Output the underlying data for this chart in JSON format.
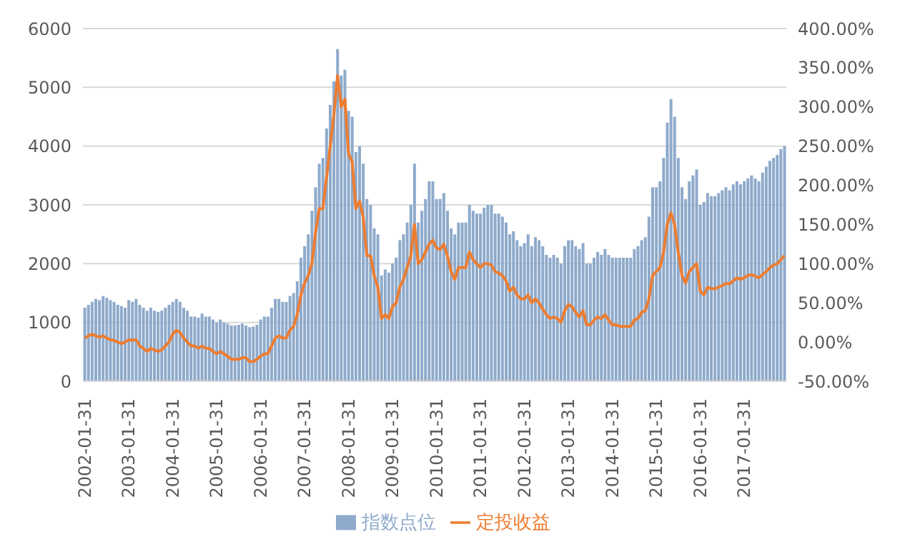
{
  "chart_data": {
    "type": "bar",
    "categories": [
      "2002-01-31",
      null,
      null,
      null,
      null,
      null,
      null,
      null,
      null,
      null,
      null,
      null,
      "2003-01-31",
      null,
      null,
      null,
      null,
      null,
      null,
      null,
      null,
      null,
      null,
      null,
      "2004-01-31",
      null,
      null,
      null,
      null,
      null,
      null,
      null,
      null,
      null,
      null,
      null,
      "2005-01-31",
      null,
      null,
      null,
      null,
      null,
      null,
      null,
      null,
      null,
      null,
      null,
      "2006-01-31",
      null,
      null,
      null,
      null,
      null,
      null,
      null,
      null,
      null,
      null,
      null,
      "2007-01-31",
      null,
      null,
      null,
      null,
      null,
      null,
      null,
      null,
      null,
      null,
      null,
      "2008-01-31",
      null,
      null,
      null,
      null,
      null,
      null,
      null,
      null,
      null,
      null,
      null,
      "2009-01-31",
      null,
      null,
      null,
      null,
      null,
      null,
      null,
      null,
      null,
      null,
      null,
      "2010-01-31",
      null,
      null,
      null,
      null,
      null,
      null,
      null,
      null,
      null,
      null,
      null,
      "2011-01-31",
      null,
      null,
      null,
      null,
      null,
      null,
      null,
      null,
      null,
      null,
      null,
      "2012-01-31",
      null,
      null,
      null,
      null,
      null,
      null,
      null,
      null,
      null,
      null,
      null,
      "2013-01-31",
      null,
      null,
      null,
      null,
      null,
      null,
      null,
      null,
      null,
      null,
      null,
      "2014-01-31",
      null,
      null,
      null,
      null,
      null,
      null,
      null,
      null,
      null,
      null,
      null,
      "2015-01-31",
      null,
      null,
      null,
      null,
      null,
      null,
      null,
      null,
      null,
      null,
      null,
      "2016-01-31",
      null,
      null,
      null,
      null,
      null,
      null,
      null,
      null,
      null,
      null,
      null,
      "2017-01-31",
      null,
      null,
      null,
      null,
      null,
      null,
      null,
      null,
      null,
      null,
      null
    ],
    "series": [
      {
        "name": "指数点位",
        "color": "#8eaacb",
        "values": [
          1250,
          1300,
          1350,
          1400,
          1380,
          1450,
          1420,
          1380,
          1350,
          1300,
          1280,
          1250,
          1380,
          1350,
          1400,
          1300,
          1250,
          1200,
          1250,
          1200,
          1180,
          1200,
          1250,
          1300,
          1350,
          1400,
          1350,
          1250,
          1200,
          1100,
          1100,
          1080,
          1150,
          1100,
          1100,
          1050,
          1000,
          1050,
          1000,
          980,
          950,
          950,
          960,
          980,
          950,
          920,
          930,
          960,
          1050,
          1100,
          1100,
          1250,
          1400,
          1400,
          1350,
          1350,
          1450,
          1500,
          1700,
          2100,
          2300,
          2500,
          2900,
          3300,
          3700,
          3800,
          4300,
          4700,
          5100,
          5650,
          5200,
          5300,
          4600,
          4500,
          3900,
          4000,
          3700,
          3100,
          3000,
          2600,
          2500,
          1800,
          1900,
          1850,
          2000,
          2100,
          2400,
          2500,
          2700,
          3000,
          3700,
          2700,
          2900,
          3100,
          3400,
          3400,
          3100,
          3100,
          3200,
          2900,
          2600,
          2500,
          2700,
          2700,
          2700,
          3000,
          2900,
          2850,
          2850,
          2950,
          3000,
          3000,
          2850,
          2850,
          2800,
          2700,
          2500,
          2550,
          2400,
          2300,
          2350,
          2500,
          2300,
          2450,
          2400,
          2300,
          2150,
          2100,
          2150,
          2100,
          2000,
          2300,
          2400,
          2400,
          2300,
          2250,
          2350,
          2000,
          2000,
          2100,
          2200,
          2150,
          2250,
          2150,
          2100,
          2100,
          2100,
          2100,
          2100,
          2100,
          2250,
          2300,
          2400,
          2450,
          2800,
          3300,
          3300,
          3400,
          3800,
          4400,
          4800,
          4500,
          3800,
          3300,
          3100,
          3400,
          3500,
          3600,
          3000,
          3050,
          3200,
          3150,
          3150,
          3200,
          3250,
          3300,
          3250,
          3350,
          3400,
          3350,
          3400,
          3450,
          3500,
          3450,
          3400,
          3550,
          3650,
          3750,
          3800,
          3850,
          3950,
          4000
        ]
      },
      {
        "name": "定投收益",
        "type": "line",
        "axis": "y2",
        "color": "#ed7d31",
        "values": [
          5,
          8,
          10,
          8,
          6,
          8,
          5,
          3,
          2,
          0,
          -2,
          0,
          3,
          2,
          3,
          -5,
          -8,
          -12,
          -8,
          -10,
          -12,
          -10,
          -5,
          0,
          10,
          15,
          12,
          5,
          0,
          -5,
          -5,
          -8,
          -5,
          -8,
          -8,
          -12,
          -15,
          -12,
          -15,
          -18,
          -22,
          -22,
          -22,
          -20,
          -20,
          -25,
          -25,
          -22,
          -18,
          -15,
          -15,
          -5,
          5,
          8,
          5,
          5,
          15,
          20,
          35,
          60,
          75,
          85,
          100,
          140,
          170,
          170,
          210,
          250,
          290,
          340,
          300,
          310,
          240,
          230,
          170,
          180,
          160,
          110,
          110,
          85,
          70,
          30,
          35,
          30,
          45,
          50,
          70,
          80,
          95,
          110,
          150,
          100,
          105,
          115,
          125,
          130,
          120,
          118,
          125,
          110,
          90,
          80,
          95,
          95,
          95,
          115,
          105,
          100,
          95,
          100,
          100,
          98,
          90,
          88,
          85,
          78,
          65,
          70,
          60,
          55,
          55,
          60,
          50,
          55,
          50,
          42,
          35,
          30,
          32,
          30,
          25,
          40,
          48,
          45,
          38,
          32,
          40,
          22,
          22,
          28,
          32,
          30,
          35,
          28,
          22,
          22,
          20,
          20,
          20,
          20,
          28,
          30,
          38,
          40,
          55,
          85,
          90,
          95,
          115,
          150,
          165,
          150,
          115,
          85,
          75,
          90,
          95,
          100,
          65,
          60,
          70,
          68,
          68,
          70,
          72,
          75,
          74,
          78,
          82,
          80,
          82,
          85,
          86,
          84,
          82,
          86,
          90,
          95,
          98,
          100,
          105,
          110
        ]
      }
    ],
    "ylim": [
      0,
      6000
    ],
    "yticks": [
      0,
      1000,
      2000,
      3000,
      4000,
      5000,
      6000
    ],
    "y2lim": [
      -50,
      400
    ],
    "y2ticks": [
      {
        "value": -50,
        "label": "-50.00%"
      },
      {
        "value": 0,
        "label": "0.00%"
      },
      {
        "value": 50,
        "label": "50.00%"
      },
      {
        "value": 100,
        "label": "100.00%"
      },
      {
        "value": 150,
        "label": "150.00%"
      },
      {
        "value": 200,
        "label": "200.00%"
      },
      {
        "value": 250,
        "label": "250.00%"
      },
      {
        "value": 300,
        "label": "300.00%"
      },
      {
        "value": 350,
        "label": "350.00%"
      },
      {
        "value": 400,
        "label": "400.00%"
      }
    ],
    "grid": "y",
    "legend": "bottom",
    "marker": "none"
  }
}
